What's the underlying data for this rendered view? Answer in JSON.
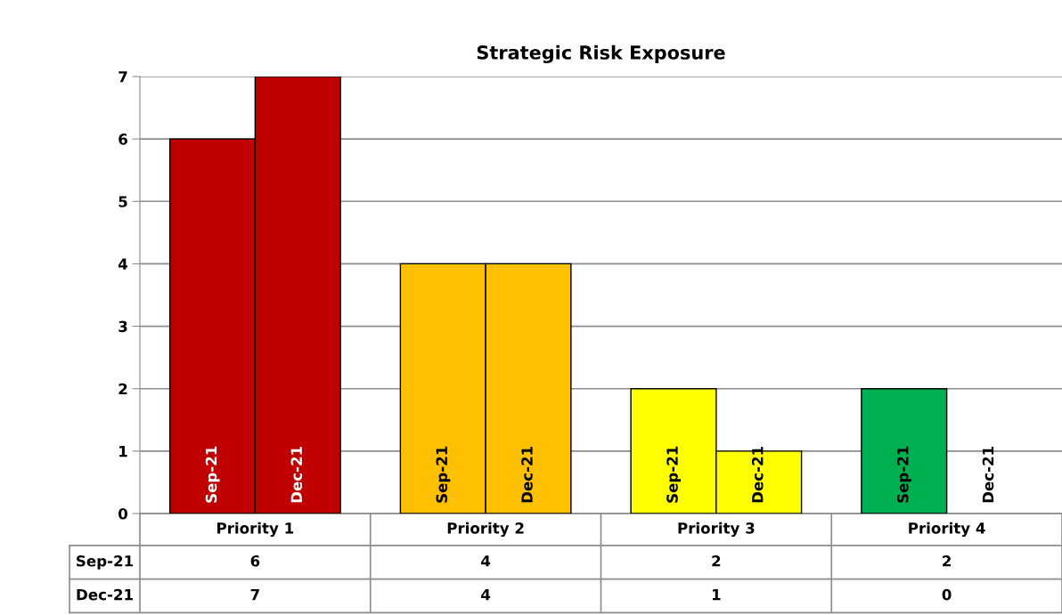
{
  "chart_data": {
    "type": "bar",
    "title": "Strategic Risk Exposure",
    "categories": [
      "Priority 1",
      "Priority 2",
      "Priority 3",
      "Priority 4"
    ],
    "series": [
      {
        "name": "Sep-21",
        "colors": [
          "#c00000",
          "#ffc000",
          "#ffff00",
          "#00b050"
        ],
        "values": [
          6,
          4,
          2,
          2
        ]
      },
      {
        "name": "Dec-21",
        "colors": [
          "#c00000",
          "#ffc000",
          "#ffff00",
          "#00b050"
        ],
        "values": [
          7,
          4,
          1,
          0
        ]
      }
    ],
    "ylim": [
      0,
      7
    ],
    "yticks": [
      0,
      1,
      2,
      3,
      4,
      5,
      6,
      7
    ],
    "grid": "y",
    "legend": false,
    "data_labels": true
  }
}
